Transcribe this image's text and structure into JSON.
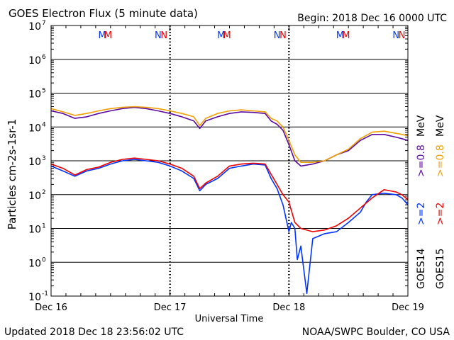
{
  "header": {
    "title": "GOES Electron Flux (5 minute data)",
    "begin": "Begin: 2018 Dec 16 0000 UTC"
  },
  "footer": {
    "updated": "Updated 2018 Dec 18 23:56:02 UTC",
    "credit": "NOAA/SWPC Boulder, CO USA"
  },
  "colors": {
    "goes14_2mev": "#0033ff",
    "goes15_2mev": "#ee0000",
    "goes14_08mev": "#5a0aa0",
    "goes15_08mev": "#f0a000"
  },
  "chart_data": {
    "type": "line",
    "title": "GOES Electron Flux (5 minute data)",
    "xlabel": "Universal Time",
    "ylabel": "Particles cm-2s-1sr-1",
    "y_scale": "log",
    "ylim": [
      0.1,
      10000000
    ],
    "xlim_days": [
      0,
      3
    ],
    "x_ticks": [
      "Dec 16",
      "Dec 17",
      "Dec 18",
      "Dec 19"
    ],
    "y_ticks": [
      {
        "base": "10",
        "exp": "7"
      },
      {
        "base": "10",
        "exp": "6"
      },
      {
        "base": "10",
        "exp": "5"
      },
      {
        "base": "10",
        "exp": "4"
      },
      {
        "base": "10",
        "exp": "3"
      },
      {
        "base": "10",
        "exp": "2"
      },
      {
        "base": "10",
        "exp": "1"
      },
      {
        "base": "10",
        "exp": "0"
      },
      {
        "base": "10",
        "exp": "-1"
      }
    ],
    "threshold": 1000,
    "grid": true,
    "eclipse_markers": [
      {
        "label": "M",
        "day": 0.43,
        "color": "#0033ff"
      },
      {
        "label": "M",
        "day": 0.48,
        "color": "#ee0000"
      },
      {
        "label": "N",
        "day": 0.9,
        "color": "#0033ff"
      },
      {
        "label": "N",
        "day": 0.95,
        "color": "#ee0000"
      },
      {
        "label": "M",
        "day": 1.43,
        "color": "#0033ff"
      },
      {
        "label": "M",
        "day": 1.48,
        "color": "#ee0000"
      },
      {
        "label": "N",
        "day": 1.9,
        "color": "#0033ff"
      },
      {
        "label": "N",
        "day": 1.95,
        "color": "#ee0000"
      },
      {
        "label": "M",
        "day": 2.43,
        "color": "#0033ff"
      },
      {
        "label": "M",
        "day": 2.48,
        "color": "#ee0000"
      },
      {
        "label": "N",
        "day": 2.9,
        "color": "#0033ff"
      },
      {
        "label": "N",
        "day": 2.95,
        "color": "#ee0000"
      }
    ],
    "legend": {
      "placement": "right",
      "sat_labels": [
        "GOES14",
        "GOES15"
      ],
      "energy_labels": [
        ">=2",
        ">=2",
        ">=0.8",
        ">=0.8"
      ],
      "unit": "MeV"
    },
    "series": [
      {
        "name": "GOES14 >=2 MeV",
        "x": [
          0,
          0.1,
          0.2,
          0.3,
          0.4,
          0.5,
          0.6,
          0.7,
          0.8,
          0.9,
          1.0,
          1.1,
          1.2,
          1.25,
          1.3,
          1.4,
          1.5,
          1.6,
          1.7,
          1.8,
          1.85,
          1.9,
          1.95,
          2.0,
          2.02,
          2.05,
          2.07,
          2.1,
          2.15,
          2.2,
          2.3,
          2.4,
          2.5,
          2.6,
          2.65,
          2.7,
          2.8,
          2.9,
          2.95,
          3.0
        ],
        "y": [
          700,
          500,
          350,
          500,
          600,
          800,
          1000,
          1100,
          1000,
          900,
          700,
          500,
          300,
          130,
          200,
          300,
          600,
          700,
          800,
          750,
          300,
          150,
          50,
          8,
          15,
          10,
          1.2,
          3,
          0.12,
          5,
          7,
          8,
          15,
          30,
          60,
          100,
          110,
          100,
          80,
          50
        ]
      },
      {
        "name": "GOES15 >=2 MeV",
        "x": [
          0,
          0.1,
          0.2,
          0.3,
          0.4,
          0.5,
          0.6,
          0.7,
          0.8,
          0.9,
          1.0,
          1.1,
          1.2,
          1.25,
          1.3,
          1.4,
          1.5,
          1.6,
          1.7,
          1.8,
          1.85,
          1.9,
          1.95,
          2.0,
          2.05,
          2.1,
          2.2,
          2.3,
          2.4,
          2.5,
          2.6,
          2.7,
          2.8,
          2.9,
          2.95,
          3.0
        ],
        "y": [
          800,
          600,
          380,
          550,
          650,
          900,
          1100,
          1200,
          1100,
          1000,
          800,
          600,
          350,
          150,
          220,
          350,
          700,
          800,
          850,
          800,
          400,
          200,
          100,
          60,
          15,
          10,
          8,
          9,
          12,
          20,
          40,
          80,
          140,
          120,
          100,
          70
        ]
      },
      {
        "name": "GOES14 >=0.8 MeV",
        "x": [
          0,
          0.1,
          0.2,
          0.3,
          0.4,
          0.5,
          0.6,
          0.7,
          0.8,
          0.9,
          1.0,
          1.1,
          1.2,
          1.25,
          1.3,
          1.4,
          1.5,
          1.6,
          1.7,
          1.8,
          1.85,
          1.9,
          1.95,
          2.0,
          2.05,
          2.1,
          2.2,
          2.3,
          2.4,
          2.5,
          2.6,
          2.7,
          2.8,
          2.9,
          2.95,
          3.0
        ],
        "y": [
          30000,
          25000,
          18000,
          20000,
          25000,
          30000,
          35000,
          38000,
          35000,
          30000,
          25000,
          20000,
          15000,
          9000,
          15000,
          20000,
          25000,
          28000,
          27000,
          25000,
          15000,
          12000,
          8000,
          3000,
          1000,
          700,
          800,
          1000,
          1500,
          2000,
          4000,
          6000,
          6000,
          5000,
          4500,
          4000
        ]
      },
      {
        "name": "GOES15 >=0.8 MeV",
        "x": [
          0,
          0.1,
          0.2,
          0.3,
          0.4,
          0.5,
          0.6,
          0.7,
          0.8,
          0.9,
          1.0,
          1.1,
          1.2,
          1.25,
          1.3,
          1.4,
          1.5,
          1.6,
          1.7,
          1.8,
          1.85,
          1.9,
          1.95,
          2.0,
          2.05,
          2.1,
          2.2,
          2.3,
          2.4,
          2.5,
          2.6,
          2.7,
          2.8,
          2.9,
          2.95,
          3.0
        ],
        "y": [
          35000,
          28000,
          22000,
          25000,
          30000,
          35000,
          38000,
          40000,
          38000,
          35000,
          30000,
          25000,
          20000,
          11000,
          18000,
          25000,
          30000,
          32000,
          30000,
          28000,
          18000,
          15000,
          10000,
          4000,
          1500,
          900,
          900,
          1000,
          1500,
          2200,
          4500,
          7000,
          7500,
          6500,
          6000,
          5500
        ]
      }
    ]
  }
}
